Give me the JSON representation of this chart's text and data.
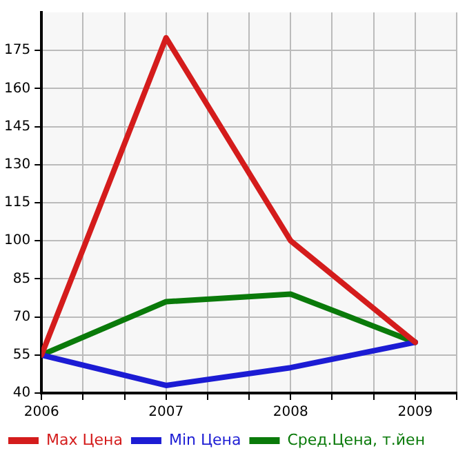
{
  "chart_data": {
    "type": "line",
    "x": [
      2006,
      2007,
      2008,
      2009
    ],
    "series": [
      {
        "name": "Max Цена",
        "color": "#d41c1c",
        "values": [
          55,
          180,
          100,
          60
        ]
      },
      {
        "name": "Min Цена",
        "color": "#1c1cd4",
        "values": [
          55,
          43,
          50,
          60
        ]
      },
      {
        "name": "Сред.Цена, т.йен",
        "color": "#0a7a0a",
        "values": [
          55,
          76,
          79,
          60
        ]
      }
    ],
    "xlim": [
      2006,
      2009.333
    ],
    "xticks": [
      2006,
      {
        "value": 2006.333,
        "label": null
      },
      {
        "value": 2006.667,
        "label": null
      },
      2007,
      {
        "value": 2007.333,
        "label": null
      },
      {
        "value": 2007.667,
        "label": null
      },
      2008,
      {
        "value": 2008.333,
        "label": null
      },
      {
        "value": 2008.667,
        "label": null
      },
      2009,
      {
        "value": 2009.333,
        "label": null
      }
    ],
    "ylim": [
      40,
      190
    ],
    "yticks": [
      40,
      55,
      70,
      85,
      100,
      115,
      130,
      145,
      160,
      175
    ],
    "grid": true,
    "legend": "bottom",
    "marker": "none",
    "line_style": "solid"
  }
}
